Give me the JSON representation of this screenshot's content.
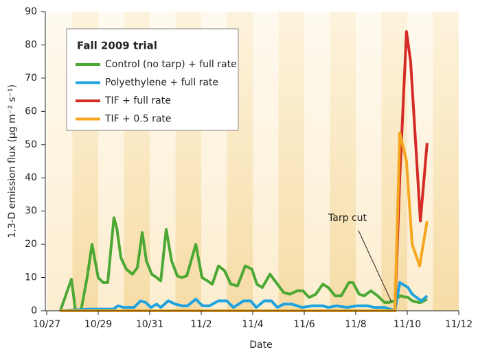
{
  "chart_data": {
    "type": "line",
    "legend_title": "Fall 2009 trial",
    "x_label": "Date",
    "y_label": "1,3-D emission flux (µg m⁻² s⁻¹)",
    "annotation": "Tarp cut",
    "xlim": [
      0,
      16
    ],
    "xticks": [
      {
        "value": 0,
        "label": "10/27"
      },
      {
        "value": 2,
        "label": "10/29"
      },
      {
        "value": 4,
        "label": "10/31"
      },
      {
        "value": 6,
        "label": "11/2"
      },
      {
        "value": 8,
        "label": "11/4"
      },
      {
        "value": 10,
        "label": "11/6"
      },
      {
        "value": 12,
        "label": "11/8"
      },
      {
        "value": 14,
        "label": "11/10"
      },
      {
        "value": 16,
        "label": "11/12"
      }
    ],
    "ylim": [
      0,
      90
    ],
    "yticks": [
      0,
      10,
      20,
      30,
      40,
      50,
      60,
      70,
      80,
      90
    ],
    "legend": "upper left",
    "series": [
      {
        "name": "Control (no tarp) + full rate",
        "color": "#4ba833",
        "x": [
          0.53,
          0.96,
          1.12,
          1.33,
          1.57,
          1.76,
          2.0,
          2.19,
          2.37,
          2.61,
          2.72,
          2.88,
          3.09,
          3.33,
          3.52,
          3.71,
          3.87,
          4.08,
          4.27,
          4.43,
          4.64,
          4.85,
          5.07,
          5.23,
          5.44,
          5.79,
          6.03,
          6.24,
          6.43,
          6.67,
          6.91,
          7.15,
          7.41,
          7.71,
          7.97,
          8.16,
          8.37,
          8.67,
          8.96,
          9.2,
          9.44,
          9.73,
          9.95,
          10.19,
          10.45,
          10.72,
          10.93,
          11.2,
          11.44,
          11.73,
          11.89,
          12.13,
          12.32,
          12.59,
          12.85,
          13.12,
          13.28,
          13.52,
          13.71,
          14.03,
          14.19,
          14.45,
          14.53,
          14.77
        ],
        "values": [
          0,
          9.5,
          0,
          0,
          10,
          20,
          10,
          8.5,
          8.5,
          28,
          25,
          16,
          12.5,
          11,
          13,
          23.5,
          15,
          11,
          10,
          9,
          24.5,
          15,
          10.5,
          10,
          10.5,
          20,
          10,
          9,
          8,
          13.5,
          12,
          8,
          7.5,
          13.5,
          12.5,
          8,
          7,
          11,
          8,
          5.5,
          5,
          6,
          6,
          4,
          5,
          8,
          7,
          4.5,
          4.5,
          8.5,
          8.5,
          5,
          4.5,
          6,
          4.5,
          2.5,
          2.5,
          3,
          4.5,
          4,
          3,
          2.5,
          2.5,
          3.5
        ]
      },
      {
        "name": "Polyethylene + full rate",
        "color": "#1fa3df",
        "x": [
          0.53,
          1.65,
          2.59,
          2.77,
          2.99,
          3.39,
          3.65,
          3.84,
          4.05,
          4.27,
          4.43,
          4.72,
          4.99,
          5.25,
          5.47,
          5.79,
          6.05,
          6.32,
          6.67,
          6.99,
          7.25,
          7.65,
          7.92,
          8.13,
          8.45,
          8.72,
          8.96,
          9.2,
          9.52,
          9.92,
          10.32,
          10.72,
          10.93,
          11.25,
          11.65,
          12.05,
          12.45,
          12.72,
          13.12,
          13.33,
          13.52,
          13.71,
          14.03,
          14.19,
          14.45,
          14.56,
          14.77
        ],
        "values": [
          0,
          0.5,
          0.5,
          1.5,
          1,
          1,
          3,
          2.5,
          1,
          2,
          1,
          3,
          2,
          1.5,
          1.5,
          3.5,
          1.5,
          1.5,
          3,
          3,
          1,
          3,
          3,
          1,
          3,
          3,
          1,
          2,
          2,
          1,
          1.5,
          1.5,
          1,
          1.5,
          1,
          1.5,
          1.5,
          1,
          1,
          0.5,
          0,
          8.5,
          7,
          5,
          3.5,
          3,
          4.5
        ]
      },
      {
        "name": "TIF + full rate",
        "color": "#d42b26",
        "x": [
          0.53,
          13.52,
          13.71,
          13.97,
          14.13,
          14.29,
          14.51,
          14.77
        ],
        "values": [
          0,
          0,
          40,
          84,
          75,
          55,
          27,
          50.5
        ]
      },
      {
        "name": "TIF + 0.5 rate",
        "color": "#f4a71f",
        "x": [
          0.53,
          13.52,
          13.71,
          13.97,
          14.19,
          14.48,
          14.77
        ],
        "values": [
          0,
          0,
          53.5,
          45,
          20,
          13.5,
          27
        ]
      }
    ]
  }
}
